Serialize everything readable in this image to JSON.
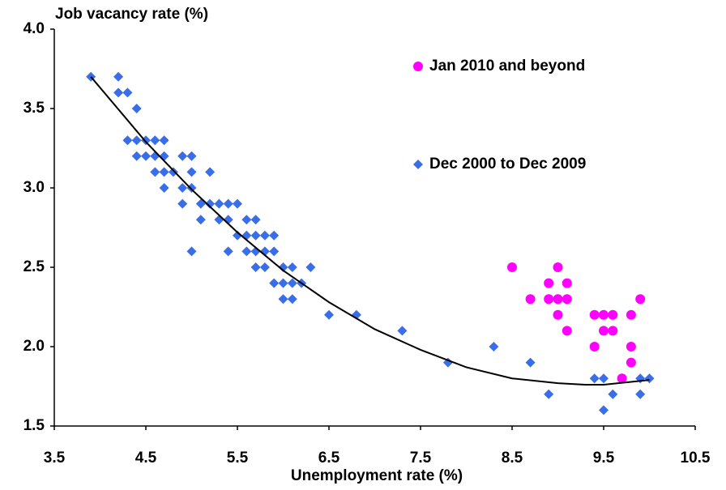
{
  "chart_data": {
    "type": "scatter",
    "y_label": "Job vacancy rate (%)",
    "x_label": "Unemployment rate (%)",
    "xlim": [
      3.5,
      10.5
    ],
    "xticks": [
      3.5,
      4.5,
      5.5,
      6.5,
      7.5,
      8.5,
      9.5,
      10.5
    ],
    "ylim": [
      1.5,
      4.0
    ],
    "yticks": [
      {
        "value": 1.5,
        "label": "1.5"
      },
      {
        "value": 2.0,
        "label": "2.0"
      },
      {
        "value": 2.5,
        "label": "2.5"
      },
      {
        "value": 3.0,
        "label": "3.0"
      },
      {
        "value": 3.5,
        "label": "3.5"
      },
      {
        "value": 4.0,
        "label": "4.0"
      }
    ],
    "series": [
      {
        "name": "Jan 2010 and beyond",
        "color": "#ff00ff",
        "marker": "circle",
        "x": [
          8.5,
          8.7,
          8.9,
          8.9,
          9.0,
          9.0,
          9.0,
          9.1,
          9.1,
          9.1,
          9.4,
          9.4,
          9.5,
          9.5,
          9.6,
          9.6,
          9.7,
          9.8,
          9.8,
          9.8,
          9.9
        ],
        "values": [
          2.5,
          2.3,
          2.4,
          2.3,
          2.5,
          2.3,
          2.2,
          2.4,
          2.3,
          2.1,
          2.2,
          2.0,
          2.2,
          2.1,
          2.2,
          2.1,
          1.8,
          2.2,
          2.0,
          1.9,
          2.3
        ]
      },
      {
        "name": "Dec 2000 to Dec 2009",
        "color": "#3a6ee8",
        "marker": "diamond",
        "x": [
          3.9,
          4.2,
          4.2,
          4.3,
          4.4,
          4.3,
          4.4,
          4.5,
          4.6,
          4.7,
          4.4,
          4.5,
          4.6,
          4.7,
          4.9,
          5.0,
          4.6,
          4.7,
          4.8,
          5.0,
          5.2,
          4.7,
          4.9,
          5.0,
          4.9,
          5.1,
          5.2,
          5.3,
          5.4,
          5.5,
          5.1,
          5.3,
          5.4,
          5.6,
          5.7,
          5.5,
          5.6,
          5.7,
          5.8,
          5.9,
          5.0,
          5.4,
          5.6,
          5.7,
          5.8,
          5.9,
          5.7,
          5.8,
          6.0,
          6.1,
          6.3,
          5.9,
          6.0,
          6.1,
          6.2,
          6.0,
          6.1,
          6.5,
          6.8,
          7.3,
          7.8,
          8.3,
          8.7,
          8.9,
          9.4,
          9.5,
          9.5,
          9.6,
          9.9,
          10.0,
          9.9
        ],
        "values": [
          3.7,
          3.7,
          3.6,
          3.6,
          3.5,
          3.3,
          3.3,
          3.3,
          3.3,
          3.3,
          3.2,
          3.2,
          3.2,
          3.2,
          3.2,
          3.2,
          3.1,
          3.1,
          3.1,
          3.1,
          3.1,
          3.0,
          3.0,
          3.0,
          2.9,
          2.9,
          2.9,
          2.9,
          2.9,
          2.9,
          2.8,
          2.8,
          2.8,
          2.8,
          2.8,
          2.7,
          2.7,
          2.7,
          2.7,
          2.7,
          2.6,
          2.6,
          2.6,
          2.6,
          2.6,
          2.6,
          2.5,
          2.5,
          2.5,
          2.5,
          2.5,
          2.4,
          2.4,
          2.4,
          2.4,
          2.3,
          2.3,
          2.2,
          2.2,
          2.1,
          1.9,
          2.0,
          1.9,
          1.7,
          1.8,
          1.8,
          1.6,
          1.7,
          1.8,
          1.8,
          1.7
        ]
      }
    ],
    "trend": {
      "color": "#000000",
      "x": [
        3.9,
        4.5,
        5.0,
        5.5,
        6.0,
        6.5,
        7.0,
        7.5,
        8.0,
        8.5,
        9.0,
        9.3,
        9.5,
        10.0
      ],
      "values": [
        3.7,
        3.29,
        2.99,
        2.72,
        2.48,
        2.28,
        2.11,
        1.98,
        1.87,
        1.8,
        1.77,
        1.76,
        1.76,
        1.79
      ]
    }
  }
}
